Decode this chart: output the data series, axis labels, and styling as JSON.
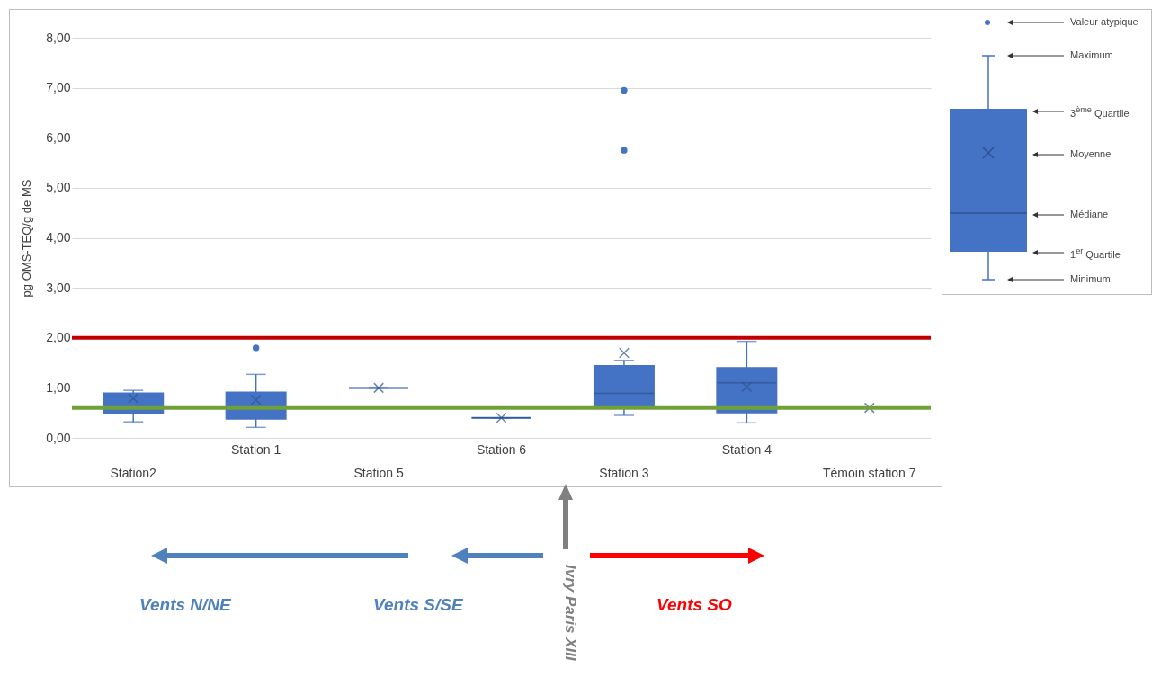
{
  "chart_data": {
    "type": "box",
    "ylabel": "pg OMS-TEQ/g de MS",
    "categories": [
      "Station2",
      "Station 1",
      "Station 5",
      "Station 6",
      "Station 3",
      "Station 4",
      "Témoin station 7"
    ],
    "series": [
      {
        "color": "#4472c4",
        "boxes": [
          {
            "low": 0.32,
            "q1": 0.49,
            "median": 0.6,
            "q3": 0.89,
            "high": 0.95,
            "mean": 0.79
          },
          {
            "low": 0.21,
            "q1": 0.38,
            "median": 0.6,
            "q3": 0.91,
            "high": 1.27,
            "mean": 0.76,
            "outliers": [
              1.8
            ]
          },
          {
            "low": 1.0,
            "q1": 1.0,
            "median": 1.0,
            "q3": 1.0,
            "high": 1.0,
            "mean": 1.0
          },
          {
            "low": 0.4,
            "q1": 0.4,
            "median": 0.4,
            "q3": 0.4,
            "high": 0.4,
            "mean": 0.4
          },
          {
            "low": 0.45,
            "q1": 0.62,
            "median": 0.89,
            "q3": 1.44,
            "high": 1.55,
            "mean": 1.7,
            "outliers": [
              5.75,
              6.95
            ]
          },
          {
            "low": 0.3,
            "q1": 0.51,
            "median": 1.1,
            "q3": 1.4,
            "high": 1.93,
            "mean": 1.02
          },
          {
            "low": 0.6,
            "q1": 0.6,
            "median": 0.6,
            "q3": 0.6,
            "high": 0.6,
            "mean": 0.6
          }
        ]
      }
    ],
    "ylim": [
      0,
      8
    ],
    "yticks": [
      {
        "value": 0,
        "label": "0,00"
      },
      {
        "value": 1,
        "label": "1,00"
      },
      {
        "value": 2,
        "label": "2,00"
      },
      {
        "value": 3,
        "label": "3,00"
      },
      {
        "value": 4,
        "label": "4,00"
      },
      {
        "value": 5,
        "label": "5,00"
      },
      {
        "value": 6,
        "label": "6,00"
      },
      {
        "value": 7,
        "label": "7,00"
      },
      {
        "value": 8,
        "label": "8,00"
      }
    ],
    "grid": "y",
    "ref_lines": [
      {
        "axis": "y",
        "value": 2,
        "color": "#c00000"
      },
      {
        "axis": "y",
        "value": 0.6,
        "color": "#70a038"
      }
    ],
    "annotations": [
      "Valeur atypique",
      "Maximum",
      "3$^{ème}$ Quartile",
      "Moyenne",
      "Médiane",
      "1$^{er}$ Quartile",
      "Minimum",
      "Vents N/NE",
      "Vents S/SE",
      "Vents SO",
      "Ivry Paris XIII"
    ]
  }
}
